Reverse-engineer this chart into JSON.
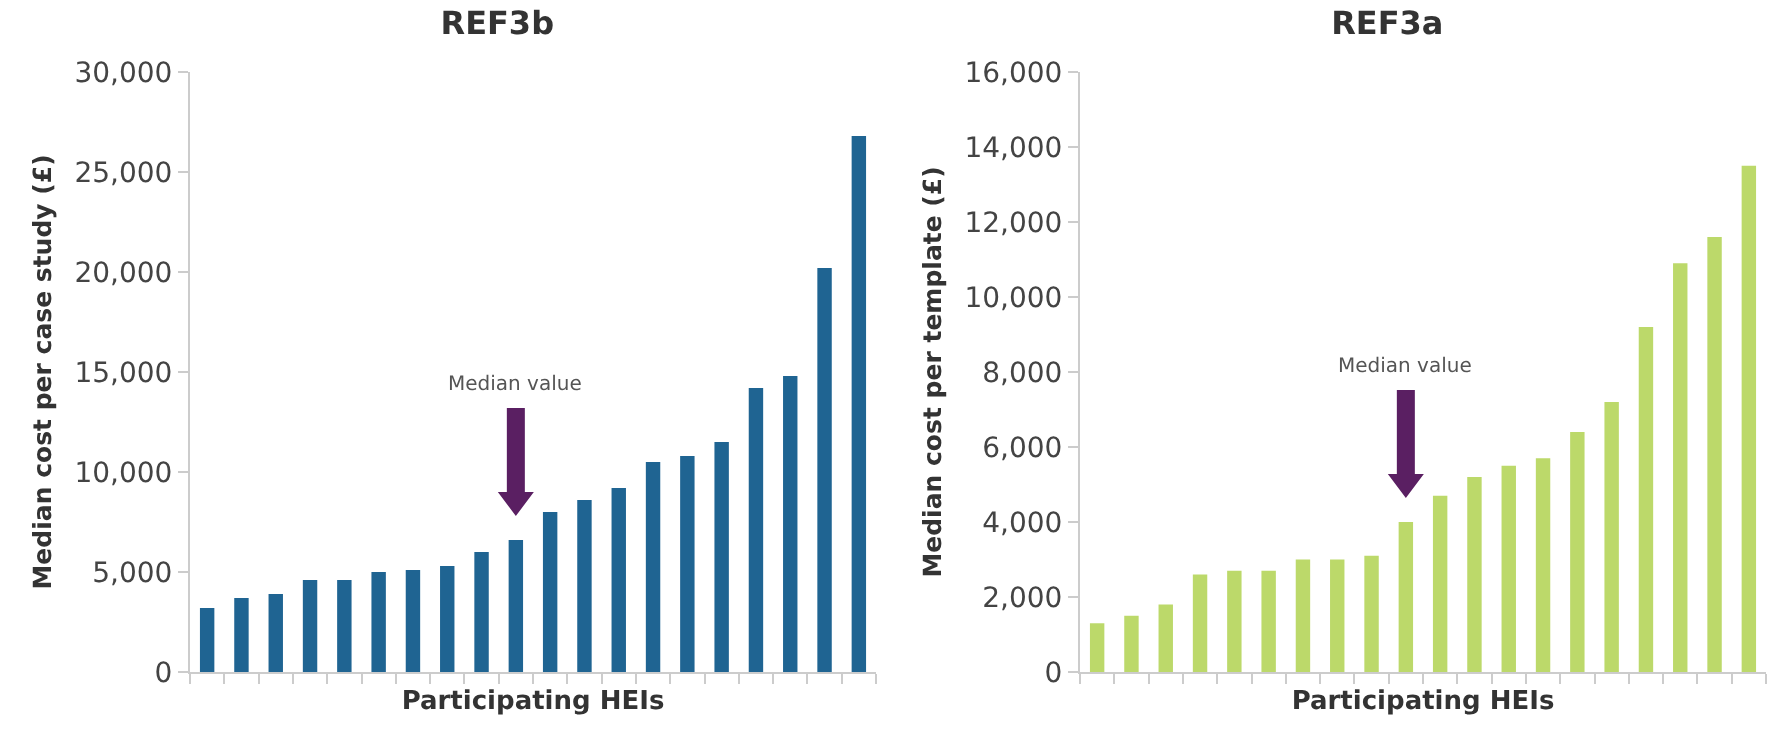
{
  "chart_data": [
    {
      "type": "bar",
      "title": "REF3b",
      "xlabel": "Participating HEIs",
      "ylabel": "Median cost per case study (£)",
      "categories": [
        null,
        null,
        null,
        null,
        null,
        null,
        null,
        null,
        null,
        null,
        null,
        null,
        null,
        null,
        null,
        null,
        null,
        null,
        null,
        null
      ],
      "values": [
        3200,
        3700,
        3900,
        4600,
        4600,
        5000,
        5100,
        5300,
        6000,
        6600,
        8000,
        8600,
        9200,
        10500,
        10800,
        11500,
        14200,
        14800,
        20200,
        26800
      ],
      "color": "#1f6492",
      "ylim": [
        0,
        30000
      ],
      "yticks": [
        {
          "value": 0,
          "label": "0"
        },
        {
          "value": 5000,
          "label": "5,000"
        },
        {
          "value": 10000,
          "label": "10,000"
        },
        {
          "value": 15000,
          "label": "15,000"
        },
        {
          "value": 20000,
          "label": "20,000"
        },
        {
          "value": 25000,
          "label": "25,000"
        },
        {
          "value": 30000,
          "label": "30,000"
        }
      ],
      "grid": false,
      "tick_labels": "y",
      "annotations": [
        "Median value"
      ]
    },
    {
      "type": "bar",
      "title": "REF3a",
      "xlabel": "Participating HEIs",
      "ylabel": "Median cost per template (£)",
      "categories": [
        null,
        null,
        null,
        null,
        null,
        null,
        null,
        null,
        null,
        null,
        null,
        null,
        null,
        null,
        null,
        null,
        null,
        null,
        null,
        null
      ],
      "values": [
        1300,
        1500,
        1800,
        2600,
        2700,
        2700,
        3000,
        3000,
        3100,
        4000,
        4700,
        5200,
        5500,
        5700,
        6400,
        7200,
        9200,
        10900,
        11600,
        13500
      ],
      "color": "#bcd96a",
      "ylim": [
        0,
        16000
      ],
      "yticks": [
        {
          "value": 0,
          "label": "0"
        },
        {
          "value": 2000,
          "label": "2,000"
        },
        {
          "value": 4000,
          "label": "4,000"
        },
        {
          "value": 6000,
          "label": "6,000"
        },
        {
          "value": 8000,
          "label": "8,000"
        },
        {
          "value": 10000,
          "label": "10,000"
        },
        {
          "value": 12000,
          "label": "12,000"
        },
        {
          "value": 14000,
          "label": "14,000"
        },
        {
          "value": 16000,
          "label": "16,000"
        }
      ],
      "grid": false,
      "tick_labels": "y",
      "annotations": [
        "Median value"
      ]
    }
  ]
}
